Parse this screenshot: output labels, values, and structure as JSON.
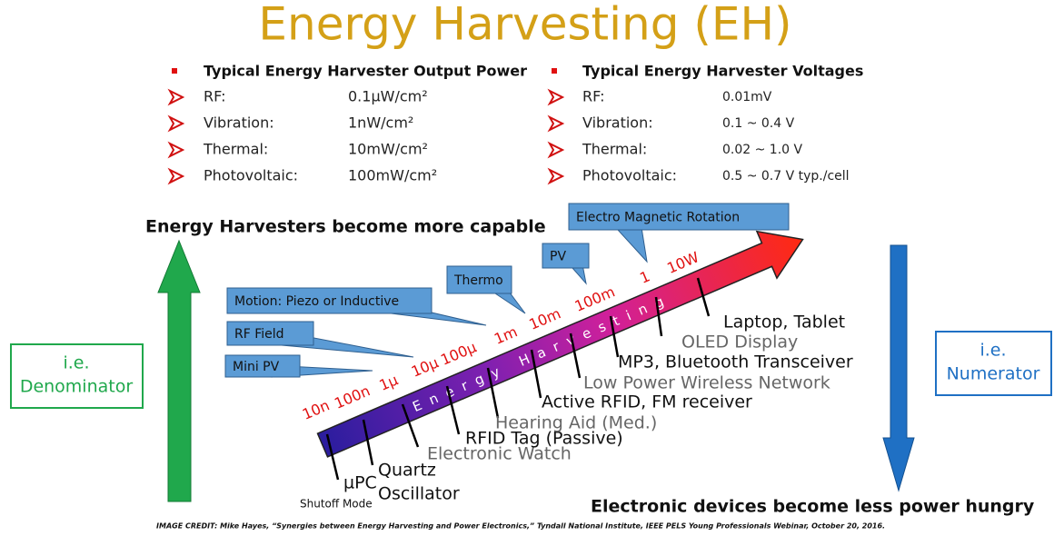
{
  "title": "Energy Harvesting (EH)",
  "power": {
    "heading": "Typical Energy Harvester Output Power",
    "items": [
      {
        "label": "RF:",
        "value": "0.1µW/cm²"
      },
      {
        "label": "Vibration:",
        "value": "1nW/cm²"
      },
      {
        "label": "Thermal:",
        "value": "10mW/cm²"
      },
      {
        "label": "Photovoltaic:",
        "value": "100mW/cm²"
      }
    ]
  },
  "voltage": {
    "heading": "Typical Energy Harvester Voltages",
    "items": [
      {
        "label": "RF:",
        "value": "0.01mV"
      },
      {
        "label": "Vibration:",
        "value": "0.1 ~ 0.4 V"
      },
      {
        "label": "Thermal:",
        "value": "0.02 ~ 1.0 V"
      },
      {
        "label": "Photovoltaic:",
        "value": "0.5 ~ 0.7 V typ./cell"
      }
    ]
  },
  "left_caption": "Energy Harvesters become more capable",
  "left_box": [
    "i.e.",
    "Denominator"
  ],
  "right_caption": "Electronic devices become less power hungry",
  "right_box": [
    "i.e.",
    "Numerator"
  ],
  "arrow_text": "Energy Harvesting",
  "scale": [
    "10n",
    "100n",
    "1µ",
    "10µ",
    "100µ",
    "1m",
    "10m",
    "100m",
    "1",
    "10W"
  ],
  "sources": [
    "Mini PV",
    "RF Field",
    "Motion: Piezo or Inductive",
    "Thermo",
    "PV",
    "Electro Magnetic Rotation"
  ],
  "devices": [
    {
      "lines": [
        "µPC"
      ],
      "note": "Shutoff Mode"
    },
    {
      "lines": [
        "Quartz",
        "Oscillator"
      ]
    },
    {
      "lines": [
        "Electronic Watch"
      ]
    },
    {
      "lines": [
        "RFID Tag (Passive)"
      ]
    },
    {
      "lines": [
        "Hearing Aid (Med.)"
      ]
    },
    {
      "lines": [
        "Active RFID, FM receiver"
      ]
    },
    {
      "lines": [
        "Low Power Wireless Network"
      ]
    },
    {
      "lines": [
        "MP3, Bluetooth Transceiver"
      ]
    },
    {
      "lines": [
        "OLED Display"
      ]
    },
    {
      "lines": [
        "Laptop, Tablet"
      ]
    }
  ],
  "credit": "IMAGE CREDIT: Mike Hayes, “Synergies between Energy Harvesting and Power Electronics,” Tyndall National Institute, IEEE PELS Young Professionals Webinar, October 20, 2016."
}
